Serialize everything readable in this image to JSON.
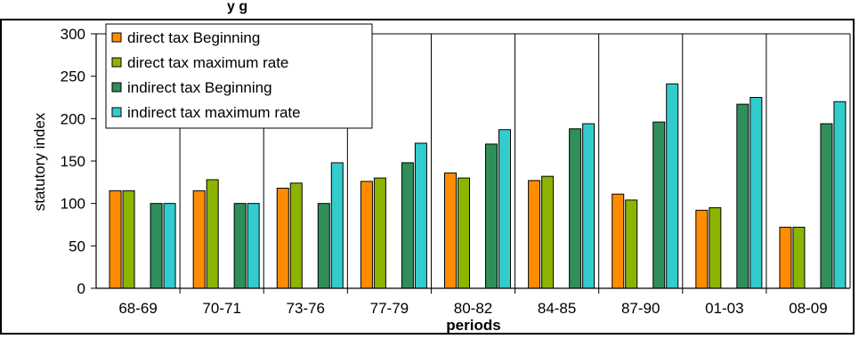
{
  "header_fragment": "y              g",
  "chart_data": {
    "type": "bar",
    "title": "",
    "xlabel": "periods",
    "ylabel": "statutory index",
    "categories": [
      "68-69",
      "70-71",
      "73-76",
      "77-79",
      "80-82",
      "84-85",
      "87-90",
      "01-03",
      "08-09"
    ],
    "ylim": [
      0,
      300
    ],
    "yticks": [
      0,
      50,
      100,
      150,
      200,
      250,
      300
    ],
    "grid": "vertical separators between categories",
    "legend_position": "top-left",
    "series": [
      {
        "name": "direct tax Beginning",
        "color": "#ff8c00",
        "values": [
          115,
          115,
          118,
          126,
          136,
          127,
          111,
          92,
          72
        ]
      },
      {
        "name": "direct tax maximum rate",
        "color": "#8cb400",
        "values": [
          115,
          128,
          124,
          130,
          130,
          132,
          104,
          95,
          72
        ]
      },
      {
        "name": "indirect tax Beginning",
        "color": "#2f8e5a",
        "values": [
          100,
          100,
          100,
          148,
          170,
          188,
          196,
          217,
          194
        ]
      },
      {
        "name": "indirect tax maximum rate",
        "color": "#33cccc",
        "values": [
          100,
          100,
          148,
          171,
          187,
          194,
          241,
          225,
          220
        ]
      }
    ]
  }
}
